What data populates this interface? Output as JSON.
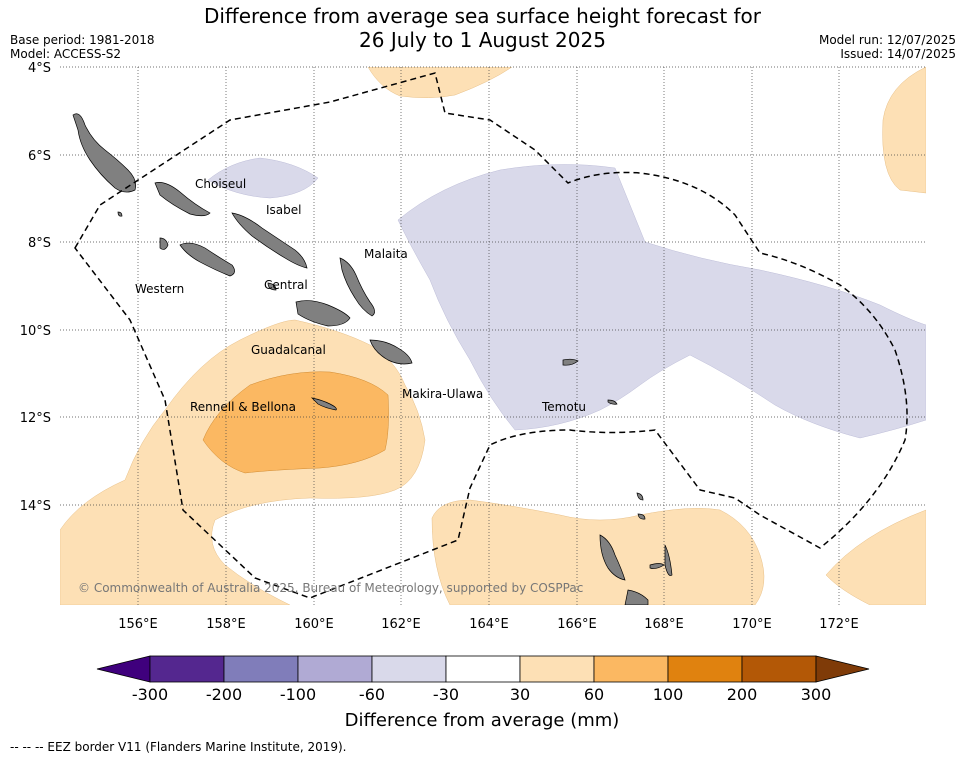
{
  "header": {
    "title_line1": "Difference from average sea surface height forecast for",
    "title_line2": "26 July to 1 August 2025",
    "base_period": "Base period: 1981-2018",
    "model": "Model: ACCESS-S2",
    "model_run": "Model run: 12/07/2025",
    "issued": "Issued: 14/07/2025"
  },
  "map": {
    "lat_labels": [
      "4°S",
      "6°S",
      "8°S",
      "10°S",
      "12°S",
      "14°S"
    ],
    "lon_labels": [
      "156°E",
      "158°E",
      "160°E",
      "162°E",
      "164°E",
      "166°E",
      "168°E",
      "170°E",
      "172°E"
    ],
    "region_labels": {
      "choiseul": "Choiseul",
      "isabel": "Isabel",
      "malaita": "Malaita",
      "western": "Western",
      "central": "Central",
      "guadalcanal": "Guadalcanal",
      "makira": "Makira-Ulawa",
      "rennell": "Rennell & Bellona",
      "temotu": "Temotu"
    },
    "copyright": "© Commonwealth of Australia 2025, Bureau of Meteorology, supported by COSPPac",
    "land_color": "#808080",
    "grid": true
  },
  "colorbar": {
    "ticks": [
      "-300",
      "-200",
      "-100",
      "-60",
      "-30",
      "30",
      "60",
      "100",
      "200",
      "300"
    ],
    "colors": [
      "#3f007d",
      "#54278f",
      "#807dba",
      "#b0aad4",
      "#d9d9ea",
      "#ffffff",
      "#fde0b5",
      "#fbb862",
      "#e0820f",
      "#b35806",
      "#7f3b08"
    ],
    "title": "Difference from average (mm)"
  },
  "legend": {
    "eez": "--  --  -- EEZ border V11 (Flanders Marine Institute, 2019)."
  }
}
